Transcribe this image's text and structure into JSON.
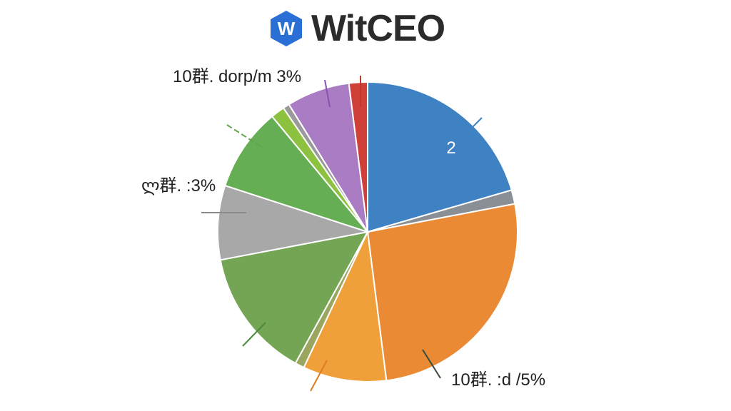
{
  "brand": {
    "logo_letter": "W",
    "name": "WitCEO",
    "logo_color": "#2a6fd6"
  },
  "chart_data": {
    "type": "pie",
    "title": "",
    "slices": [
      {
        "value": 20.5,
        "color": "#3f82c4",
        "label": "2"
      },
      {
        "value": 1.5,
        "color": "#8a8f96",
        "label": ""
      },
      {
        "value": 26.0,
        "color": "#ea8a35",
        "label": "10群. :d /5%"
      },
      {
        "value": 9.0,
        "color": "#f0a03a",
        "label": ""
      },
      {
        "value": 1.0,
        "color": "#9aa560",
        "label": ""
      },
      {
        "value": 14.0,
        "color": "#74a554",
        "label": ""
      },
      {
        "value": 8.0,
        "color": "#a8a8a8",
        "label": "ლ群. :3%"
      },
      {
        "value": 9.0,
        "color": "#66ae54",
        "label": ""
      },
      {
        "value": 1.5,
        "color": "#8cc23f",
        "label": ""
      },
      {
        "value": 0.7,
        "color": "#9a9a9a",
        "label": ""
      },
      {
        "value": 6.8,
        "color": "#a97cc4",
        "label": "10群. dorp/m 3%"
      },
      {
        "value": 2.0,
        "color": "#cf4038",
        "label": ""
      }
    ],
    "start_angle_deg": 0,
    "direction": "clockwise"
  }
}
